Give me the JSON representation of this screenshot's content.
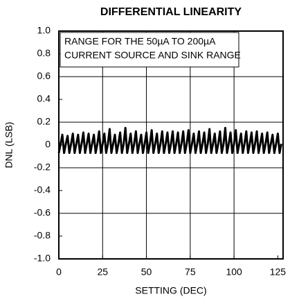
{
  "chart_data": {
    "type": "line",
    "title": "DIFFERENTIAL LINEARITY",
    "x_label": "SETTING (DEC)",
    "y_label": "DNL (LSB)",
    "annotation": [
      "RANGE FOR THE 50µA TO 200µA",
      "CURRENT SOURCE AND SINK RANGE"
    ],
    "x": [
      0,
      1,
      2,
      3,
      4,
      5,
      6,
      7,
      8,
      9,
      10,
      11,
      12,
      13,
      14,
      15,
      16,
      17,
      18,
      19,
      20,
      21,
      22,
      23,
      24,
      25,
      26,
      27,
      28,
      29,
      30,
      31,
      32,
      33,
      34,
      35,
      36,
      37,
      38,
      39,
      40,
      41,
      42,
      43,
      44,
      45,
      46,
      47,
      48,
      49,
      50,
      51,
      52,
      53,
      54,
      55,
      56,
      57,
      58,
      59,
      60,
      61,
      62,
      63,
      64,
      65,
      66,
      67,
      68,
      69,
      70,
      71,
      72,
      73,
      74,
      75,
      76,
      77,
      78,
      79,
      80,
      81,
      82,
      83,
      84,
      85,
      86,
      87,
      88,
      89,
      90,
      91,
      92,
      93,
      94,
      95,
      96,
      97,
      98,
      99,
      100,
      101,
      102,
      103,
      104,
      105,
      106,
      107,
      108,
      109,
      110,
      111,
      112,
      113,
      114,
      115,
      116,
      117,
      118,
      119,
      120,
      121,
      122,
      123,
      124,
      125,
      126,
      127
    ],
    "series": [
      {
        "color": "#000000",
        "values": [
          -0.07,
          0.01,
          0.09,
          -0.07,
          0.01,
          0.08,
          -0.07,
          0.01,
          0.1,
          -0.07,
          0.01,
          0.09,
          -0.07,
          0.01,
          0.11,
          -0.07,
          0.01,
          0.1,
          -0.07,
          0.01,
          0.09,
          -0.07,
          0.01,
          0.12,
          -0.07,
          0.01,
          0.1,
          -0.07,
          0.01,
          0.14,
          -0.07,
          0.01,
          0.09,
          -0.07,
          0.01,
          0.11,
          -0.07,
          0.01,
          0.15,
          -0.07,
          0.01,
          0.1,
          -0.07,
          0.01,
          0.12,
          -0.07,
          0.01,
          0.09,
          -0.07,
          0.01,
          0.11,
          -0.07,
          0.01,
          0.13,
          -0.07,
          0.01,
          0.1,
          -0.07,
          0.01,
          0.12,
          -0.07,
          0.01,
          0.11,
          -0.07,
          0.01,
          0.12,
          -0.07,
          0.01,
          0.11,
          -0.07,
          0.01,
          0.12,
          -0.07,
          0.01,
          0.13,
          -0.07,
          0.01,
          0.1,
          -0.07,
          0.01,
          0.12,
          -0.07,
          0.01,
          0.11,
          -0.07,
          0.01,
          0.14,
          -0.07,
          0.01,
          0.1,
          -0.07,
          0.01,
          0.12,
          -0.07,
          0.01,
          0.15,
          -0.07,
          0.01,
          0.11,
          -0.07,
          0.01,
          0.13,
          -0.07,
          0.01,
          0.1,
          -0.07,
          0.01,
          0.12,
          -0.07,
          0.01,
          0.11,
          -0.07,
          0.01,
          0.12,
          -0.07,
          0.01,
          0.1,
          -0.07,
          0.01,
          0.11,
          -0.07,
          0.01,
          0.09,
          -0.07,
          0.01,
          0.1,
          -0.07,
          0.01
        ]
      }
    ],
    "xlim": [
      0,
      128
    ],
    "ylim": [
      -1,
      1
    ],
    "xticks": [
      0,
      25,
      50,
      75,
      100,
      125
    ],
    "yticks": [
      {
        "value": 1,
        "label": "1.0"
      },
      0.8,
      0.6,
      0.4,
      0.2,
      0,
      -0.2,
      -0.4,
      -0.6,
      -0.8,
      {
        "value": -1,
        "label": "-1.0"
      }
    ],
    "grid": true
  }
}
